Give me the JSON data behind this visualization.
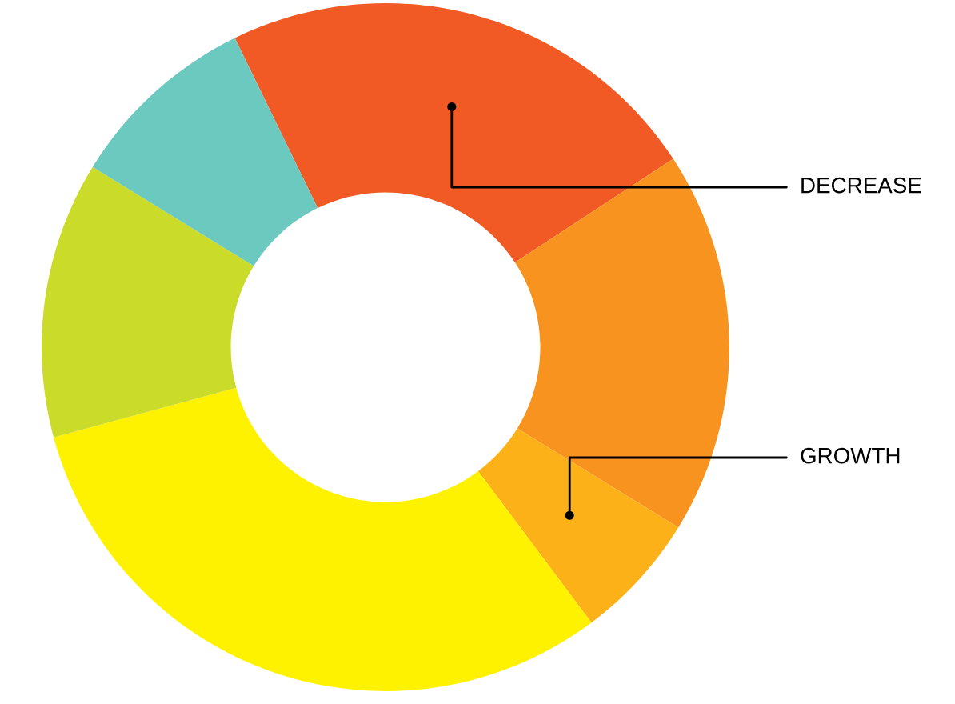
{
  "chart_data": {
    "type": "donut",
    "categories": [
      "DECREASE",
      null,
      "GROWTH",
      null,
      null,
      null
    ],
    "values": [
      23,
      18,
      6,
      31,
      13,
      9
    ],
    "colors": [
      "#f15a24",
      "#f7931e",
      "#fbb117",
      "#fff200",
      "#cbdb2a",
      "#6cc9c0"
    ],
    "legend": false
  }
}
